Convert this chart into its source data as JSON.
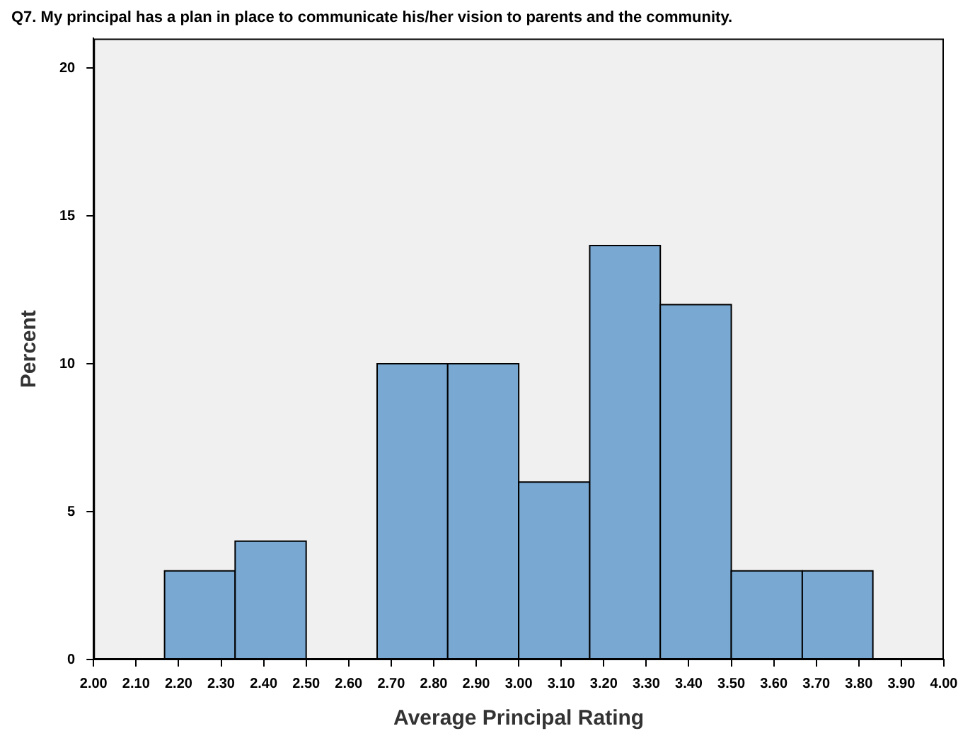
{
  "chart_data": {
    "type": "histogram",
    "title": "Q7. My principal has a plan in place to communicate his/her vision to parents and the community.",
    "xlabel": "Average Principal Rating",
    "ylabel": "Percent",
    "bins": [
      2.167,
      2.333,
      2.5,
      2.667,
      2.833,
      3.0,
      3.167,
      3.333,
      3.5,
      3.667,
      3.833
    ],
    "values": [
      3,
      4,
      0,
      10,
      10,
      6,
      14,
      12,
      3,
      3
    ],
    "color": "#79a9d3",
    "xlim": [
      2,
      4
    ],
    "xticks": [
      {
        "value": 2,
        "label": "2.00"
      },
      {
        "value": 2.1,
        "label": "2.10"
      },
      {
        "value": 2.2,
        "label": "2.20"
      },
      {
        "value": 2.3,
        "label": "2.30"
      },
      {
        "value": 2.4,
        "label": "2.40"
      },
      {
        "value": 2.5,
        "label": "2.50"
      },
      {
        "value": 2.6,
        "label": "2.60"
      },
      {
        "value": 2.7,
        "label": "2.70"
      },
      {
        "value": 2.8,
        "label": "2.80"
      },
      {
        "value": 2.9,
        "label": "2.90"
      },
      {
        "value": 3,
        "label": "3.00"
      },
      {
        "value": 3.1,
        "label": "3.10"
      },
      {
        "value": 3.2,
        "label": "3.20"
      },
      {
        "value": 3.3,
        "label": "3.30"
      },
      {
        "value": 3.4,
        "label": "3.40"
      },
      {
        "value": 3.5,
        "label": "3.50"
      },
      {
        "value": 3.6,
        "label": "3.60"
      },
      {
        "value": 3.7,
        "label": "3.70"
      },
      {
        "value": 3.8,
        "label": "3.80"
      },
      {
        "value": 3.9,
        "label": "3.90"
      },
      {
        "value": 4,
        "label": "4.00"
      }
    ],
    "ylim": [
      0,
      21
    ],
    "yticks": [
      0,
      5,
      10,
      15,
      20
    ],
    "grid": false,
    "legend": false
  }
}
